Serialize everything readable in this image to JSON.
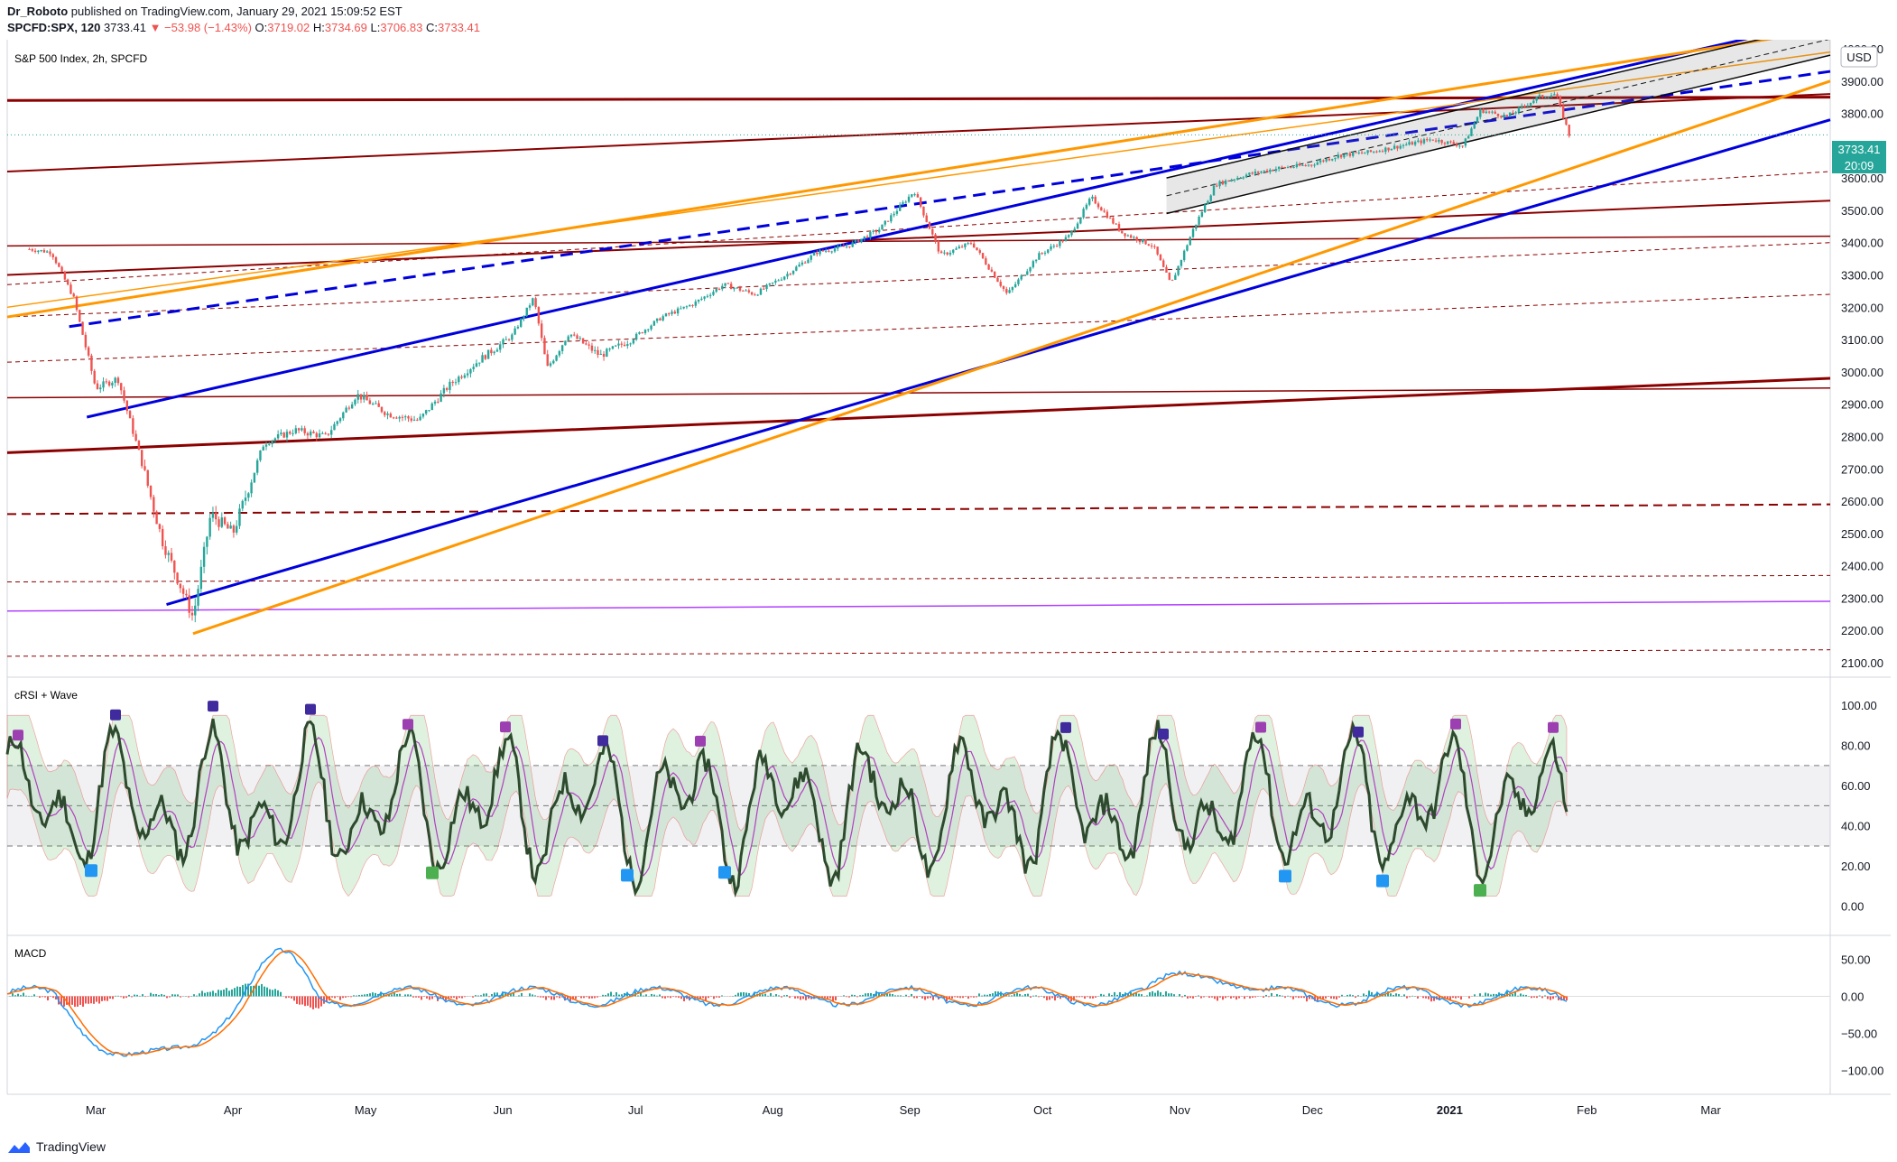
{
  "header": {
    "author": "Dr_Roboto",
    "published": "published on TradingView.com, January 29, 2021 15:09:52 EST",
    "symbol": "SPCFD:SPX, 120",
    "last": "3733.41",
    "change": "▼ −53.98 (−1.43%)",
    "o_label": "O:",
    "o": "3719.02",
    "h_label": "H:",
    "h": "3734.69",
    "l_label": "L:",
    "l": "3706.83",
    "c_label": "C:",
    "c": "3733.41"
  },
  "main_pane": {
    "title": "S&P 500 Index, 2h, SPCFD",
    "currency": "USD",
    "price_tag": "3733.41",
    "countdown": "20:09"
  },
  "crsi_pane": {
    "title": "cRSI + Wave"
  },
  "macd_pane": {
    "title": "MACD"
  },
  "footer": {
    "brand": "TradingView"
  },
  "colors": {
    "up": "#26a69a",
    "down": "#ef5350",
    "blue": "#0000dd",
    "orange": "#ff9800",
    "darkred": "#8b0000",
    "purple": "#b040ff",
    "bull": "#4caf50",
    "bear": "#f05050"
  },
  "chart_data": [
    {
      "type": "line",
      "name": "price",
      "x": [
        "2020-02-15",
        "2020-02-20",
        "2020-02-25",
        "2020-03-01",
        "2020-03-06",
        "2020-03-11",
        "2020-03-16",
        "2020-03-23",
        "2020-03-27",
        "2020-04-01",
        "2020-04-08",
        "2020-04-15",
        "2020-04-22",
        "2020-04-29",
        "2020-05-06",
        "2020-05-13",
        "2020-05-20",
        "2020-05-27",
        "2020-06-03",
        "2020-06-08",
        "2020-06-11",
        "2020-06-16",
        "2020-06-23",
        "2020-06-30",
        "2020-07-07",
        "2020-07-14",
        "2020-07-21",
        "2020-07-28",
        "2020-08-04",
        "2020-08-11",
        "2020-08-18",
        "2020-08-25",
        "2020-09-02",
        "2020-09-08",
        "2020-09-15",
        "2020-09-23",
        "2020-09-30",
        "2020-10-07",
        "2020-10-12",
        "2020-10-19",
        "2020-10-26",
        "2020-10-30",
        "2020-11-04",
        "2020-11-09",
        "2020-11-16",
        "2020-11-23",
        "2020-11-30",
        "2020-12-07",
        "2020-12-14",
        "2020-12-21",
        "2020-12-28",
        "2021-01-04",
        "2021-01-08",
        "2021-01-14",
        "2021-01-21",
        "2021-01-25",
        "2021-01-28"
      ],
      "y": [
        3380,
        3370,
        3230,
        2950,
        2980,
        2740,
        2480,
        2240,
        2560,
        2500,
        2780,
        2820,
        2800,
        2930,
        2870,
        2850,
        2960,
        3040,
        3110,
        3230,
        3010,
        3120,
        3050,
        3100,
        3170,
        3210,
        3270,
        3240,
        3300,
        3370,
        3390,
        3440,
        3560,
        3360,
        3400,
        3240,
        3360,
        3420,
        3540,
        3430,
        3390,
        3270,
        3440,
        3580,
        3610,
        3630,
        3640,
        3670,
        3680,
        3700,
        3720,
        3700,
        3810,
        3790,
        3850,
        3860,
        3733
      ],
      "ylabel": "USD",
      "ylim": [
        2100,
        4000
      ],
      "yticks": [
        4000,
        3900,
        3800,
        3700,
        3600,
        3500,
        3400,
        3300,
        3200,
        3100,
        3000,
        2900,
        2800,
        2700,
        2600,
        2500,
        2400,
        2300,
        2200,
        2100
      ],
      "ytick_labels": [
        "4000.00",
        "3900.00",
        "3800.00",
        "",
        "3600.00",
        "3500.00",
        "3400.00",
        "3300.00",
        "3200.00",
        "3100.00",
        "3000.00",
        "2900.00",
        "2800.00",
        "2700.00",
        "2600.00",
        "2500.00",
        "2400.00",
        "2300.00",
        "2200.00",
        "2100.00"
      ],
      "xtick_labels": [
        "Mar",
        "Apr",
        "May",
        "Jun",
        "Jul",
        "Aug",
        "Sep",
        "Oct",
        "Nov",
        "Dec",
        "2021",
        "Feb",
        "Mar"
      ],
      "last_value": 3733.41
    },
    {
      "type": "line",
      "name": "cRSI",
      "ylim": [
        -10,
        105
      ],
      "yticks": [
        100,
        80,
        60,
        40,
        20,
        0
      ],
      "ytick_labels": [
        "100.00",
        "80.00",
        "60.00",
        "40.00",
        "20.00",
        "0.00"
      ],
      "levels": [
        70,
        50,
        30
      ]
    },
    {
      "type": "line",
      "name": "MACD",
      "ylim": [
        -120,
        70
      ],
      "yticks": [
        50,
        0,
        -50,
        -100
      ],
      "ytick_labels": [
        "50.00",
        "0.00",
        "−50.00",
        "−100.00"
      ]
    }
  ]
}
